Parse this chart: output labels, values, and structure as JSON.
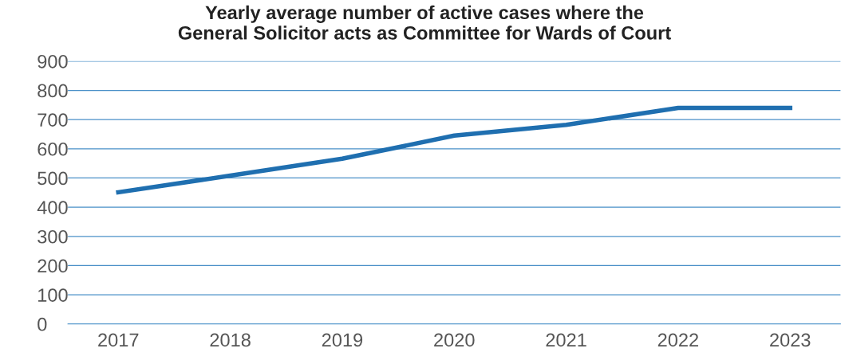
{
  "chart_data": {
    "type": "line",
    "title": "Yearly average number of active cases where the\nGeneral Solicitor acts as Committee for Wards of Court",
    "categories": [
      "2017",
      "2018",
      "2019",
      "2020",
      "2021",
      "2022",
      "2023"
    ],
    "series": [
      {
        "color": "#1f6fb0",
        "values": [
          451,
          508,
          566,
          645,
          682,
          740,
          740
        ]
      }
    ],
    "ylim": [
      0,
      900
    ],
    "yticks": [
      0,
      100,
      200,
      300,
      400,
      500,
      600,
      700,
      800,
      900
    ],
    "grid": "y",
    "legend": false,
    "marker": "none",
    "line_style": "solid"
  }
}
